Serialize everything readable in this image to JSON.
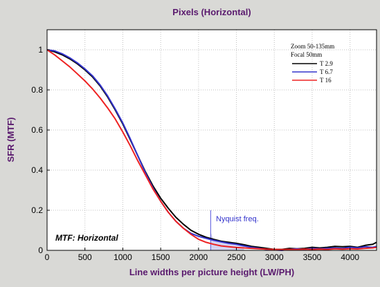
{
  "chart_data": {
    "type": "line",
    "title": "Pixels (Horizontal)",
    "xlabel": "Line widths per picture height (LW/PH)",
    "ylabel": "SFR (MTF)",
    "xlim": [
      0,
      4350
    ],
    "ylim": [
      0,
      1.1
    ],
    "xticks": [
      0,
      500,
      1000,
      1500,
      2000,
      2500,
      3000,
      3500,
      4000
    ],
    "yticks": [
      0,
      0.2,
      0.4,
      0.6,
      0.8,
      1
    ],
    "grid": true,
    "legend": {
      "placement": "top-right",
      "header": [
        "Zoom 50-135mm",
        "Focal 50mm"
      ]
    },
    "annotations": {
      "nyquist_label": "Nyquist freq.",
      "nyquist_x": 2160,
      "corner_label": "MTF: Horizontal"
    },
    "series": [
      {
        "name": "T 2.9",
        "color": "#000000",
        "x": [
          0,
          100,
          200,
          300,
          400,
          500,
          600,
          700,
          800,
          900,
          1000,
          1100,
          1200,
          1300,
          1400,
          1500,
          1600,
          1700,
          1800,
          1900,
          2000,
          2100,
          2200,
          2300,
          2400,
          2500,
          2600,
          2700,
          2800,
          2900,
          3000,
          3100,
          3200,
          3300,
          3400,
          3500,
          3600,
          3700,
          3800,
          3900,
          4000,
          4100,
          4200,
          4300,
          4350
        ],
        "y": [
          1.0,
          0.99,
          0.975,
          0.955,
          0.93,
          0.9,
          0.865,
          0.82,
          0.765,
          0.7,
          0.63,
          0.55,
          0.47,
          0.39,
          0.32,
          0.26,
          0.21,
          0.165,
          0.13,
          0.1,
          0.08,
          0.065,
          0.055,
          0.045,
          0.04,
          0.035,
          0.028,
          0.02,
          0.015,
          0.01,
          0.005,
          0.005,
          0.01,
          0.008,
          0.01,
          0.015,
          0.012,
          0.015,
          0.02,
          0.018,
          0.02,
          0.015,
          0.025,
          0.03,
          0.04
        ]
      },
      {
        "name": "T 6.7",
        "color": "#3333cc",
        "x": [
          0,
          100,
          200,
          300,
          400,
          500,
          600,
          700,
          800,
          900,
          1000,
          1100,
          1200,
          1300,
          1400,
          1500,
          1600,
          1700,
          1800,
          1900,
          2000,
          2100,
          2200,
          2300,
          2400,
          2500,
          2600,
          2700,
          2800,
          2900,
          3000,
          3100,
          3200,
          3300,
          3400,
          3500,
          3600,
          3700,
          3800,
          3900,
          4000,
          4100,
          4200,
          4300,
          4350
        ],
        "y": [
          1.0,
          0.995,
          0.98,
          0.96,
          0.935,
          0.905,
          0.87,
          0.825,
          0.77,
          0.705,
          0.635,
          0.555,
          0.47,
          0.385,
          0.31,
          0.245,
          0.19,
          0.145,
          0.11,
          0.085,
          0.07,
          0.06,
          0.05,
          0.042,
          0.035,
          0.03,
          0.022,
          0.015,
          0.01,
          0.005,
          0.002,
          0.0,
          0.005,
          0.008,
          0.005,
          0.01,
          0.008,
          0.01,
          0.012,
          0.01,
          0.015,
          0.012,
          0.018,
          0.015,
          0.02
        ]
      },
      {
        "name": "T 16",
        "color": "#ee2222",
        "x": [
          0,
          100,
          200,
          300,
          400,
          500,
          600,
          700,
          800,
          900,
          1000,
          1100,
          1200,
          1300,
          1400,
          1500,
          1600,
          1700,
          1800,
          1900,
          2000,
          2100,
          2200,
          2300,
          2400,
          2500,
          2600,
          2700,
          2800,
          2900,
          3000,
          3100,
          3200,
          3300,
          3400,
          3500,
          3600,
          3700,
          3800,
          3900,
          4000,
          4100,
          4200,
          4300,
          4350
        ],
        "y": [
          1.0,
          0.975,
          0.945,
          0.915,
          0.88,
          0.845,
          0.805,
          0.76,
          0.71,
          0.655,
          0.59,
          0.52,
          0.445,
          0.375,
          0.305,
          0.245,
          0.19,
          0.145,
          0.11,
          0.08,
          0.055,
          0.04,
          0.03,
          0.022,
          0.018,
          0.014,
          0.012,
          0.01,
          0.008,
          0.006,
          0.005,
          0.004,
          0.005,
          0.004,
          0.006,
          0.005,
          0.006,
          0.005,
          0.008,
          0.006,
          0.008,
          0.007,
          0.01,
          0.012,
          0.015
        ]
      }
    ]
  }
}
